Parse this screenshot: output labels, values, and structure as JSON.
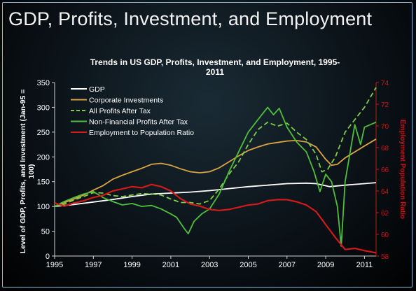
{
  "slide_title": "GDP, Profits, Investment, and Employment",
  "chart_data": {
    "type": "line",
    "title_line1": "Trends in US GDP, Profits, Investment, and Employment, 1995-",
    "title_line2": "2011",
    "ylabel_line1": "Level of GDP, Profits, and Investment (Jan-95 =",
    "ylabel_line2": "100)",
    "y2label": "Employment Population Ratio",
    "xlim": [
      1995,
      2011.6
    ],
    "ylim": [
      0,
      350
    ],
    "y2lim": [
      58,
      74
    ],
    "x_ticks": [
      "1995",
      "1997",
      "1999",
      "2001",
      "2003",
      "2005",
      "2007",
      "2009",
      "2011"
    ],
    "y_ticks": [
      "0",
      "50",
      "100",
      "150",
      "200",
      "250",
      "300",
      "350"
    ],
    "y2_ticks": [
      "58",
      "60",
      "62",
      "64",
      "66",
      "68",
      "70",
      "72",
      "74"
    ],
    "legend_position": "top-left",
    "series": [
      {
        "name": "GDP",
        "color": "#ffffff",
        "dash": "solid",
        "axis": "left",
        "points": [
          [
            1995,
            100
          ],
          [
            1996,
            104
          ],
          [
            1997,
            109
          ],
          [
            1998,
            114
          ],
          [
            1999,
            120
          ],
          [
            2000,
            125
          ],
          [
            2001,
            127
          ],
          [
            2002,
            129
          ],
          [
            2003,
            132
          ],
          [
            2004,
            136
          ],
          [
            2005,
            140
          ],
          [
            2006,
            143
          ],
          [
            2007,
            146
          ],
          [
            2008,
            147
          ],
          [
            2008.5,
            146
          ],
          [
            2009.2,
            140
          ],
          [
            2010,
            143
          ],
          [
            2011,
            146
          ],
          [
            2011.6,
            148
          ]
        ]
      },
      {
        "name": "Corporate Investments",
        "color": "#d9a441",
        "dash": "solid",
        "axis": "left",
        "points": [
          [
            1995,
            100
          ],
          [
            1995.5,
            108
          ],
          [
            1996,
            115
          ],
          [
            1996.5,
            123
          ],
          [
            1997,
            133
          ],
          [
            1997.5,
            142
          ],
          [
            1998,
            155
          ],
          [
            1998.5,
            163
          ],
          [
            1999,
            170
          ],
          [
            1999.5,
            177
          ],
          [
            2000,
            185
          ],
          [
            2000.5,
            187
          ],
          [
            2001,
            183
          ],
          [
            2001.5,
            176
          ],
          [
            2002,
            170
          ],
          [
            2002.5,
            168
          ],
          [
            2003,
            170
          ],
          [
            2003.5,
            178
          ],
          [
            2004,
            190
          ],
          [
            2004.5,
            202
          ],
          [
            2005,
            213
          ],
          [
            2005.5,
            220
          ],
          [
            2006,
            226
          ],
          [
            2006.5,
            229
          ],
          [
            2007,
            232
          ],
          [
            2007.5,
            233
          ],
          [
            2008,
            230
          ],
          [
            2008.5,
            220
          ],
          [
            2009,
            195
          ],
          [
            2009.3,
            183
          ],
          [
            2009.6,
            185
          ],
          [
            2010,
            198
          ],
          [
            2010.5,
            210
          ],
          [
            2011,
            222
          ],
          [
            2011.6,
            236
          ]
        ]
      },
      {
        "name": "All Profits After Tax",
        "color": "#7dcc4a",
        "dash": "dashed",
        "axis": "left",
        "points": [
          [
            1995,
            100
          ],
          [
            1995.5,
            105
          ],
          [
            1996,
            113
          ],
          [
            1996.5,
            120
          ],
          [
            1997,
            128
          ],
          [
            1997.5,
            127
          ],
          [
            1998,
            122
          ],
          [
            1998.5,
            120
          ],
          [
            1999,
            123
          ],
          [
            1999.5,
            126
          ],
          [
            2000,
            125
          ],
          [
            2000.5,
            123
          ],
          [
            2001,
            115
          ],
          [
            2001.5,
            108
          ],
          [
            2002,
            108
          ],
          [
            2002.5,
            105
          ],
          [
            2003,
            112
          ],
          [
            2003.5,
            135
          ],
          [
            2004,
            165
          ],
          [
            2004.5,
            190
          ],
          [
            2005,
            225
          ],
          [
            2005.5,
            255
          ],
          [
            2006,
            270
          ],
          [
            2006.5,
            262
          ],
          [
            2007,
            268
          ],
          [
            2007.5,
            250
          ],
          [
            2008,
            235
          ],
          [
            2008.5,
            205
          ],
          [
            2008.8,
            170
          ],
          [
            2009.1,
            175
          ],
          [
            2009.5,
            200
          ],
          [
            2010,
            250
          ],
          [
            2010.5,
            275
          ],
          [
            2011,
            300
          ],
          [
            2011.6,
            340
          ]
        ]
      },
      {
        "name": "Non-Financial Profits After Tax",
        "color": "#4fbf3a",
        "dash": "solid",
        "axis": "left",
        "points": [
          [
            1995,
            100
          ],
          [
            1995.5,
            110
          ],
          [
            1996,
            118
          ],
          [
            1996.5,
            125
          ],
          [
            1997,
            130
          ],
          [
            1997.5,
            118
          ],
          [
            1998,
            110
          ],
          [
            1998.5,
            103
          ],
          [
            1999,
            106
          ],
          [
            1999.5,
            100
          ],
          [
            2000,
            102
          ],
          [
            2000.5,
            95
          ],
          [
            2001,
            85
          ],
          [
            2001.3,
            78
          ],
          [
            2001.7,
            55
          ],
          [
            2001.9,
            45
          ],
          [
            2002.2,
            70
          ],
          [
            2002.6,
            85
          ],
          [
            2003,
            95
          ],
          [
            2003.5,
            125
          ],
          [
            2004,
            170
          ],
          [
            2004.5,
            210
          ],
          [
            2005,
            250
          ],
          [
            2005.5,
            275
          ],
          [
            2006,
            300
          ],
          [
            2006.3,
            285
          ],
          [
            2006.6,
            298
          ],
          [
            2007,
            260
          ],
          [
            2007.5,
            230
          ],
          [
            2008,
            210
          ],
          [
            2008.4,
            170
          ],
          [
            2008.7,
            130
          ],
          [
            2009.0,
            165
          ],
          [
            2009.3,
            150
          ],
          [
            2009.6,
            100
          ],
          [
            2009.8,
            20
          ],
          [
            2010,
            150
          ],
          [
            2010.5,
            265
          ],
          [
            2010.8,
            225
          ],
          [
            2011,
            260
          ],
          [
            2011.6,
            270
          ]
        ]
      },
      {
        "name": "Employment to Population Ratio",
        "color": "#d11a1a",
        "dash": "solid",
        "axis": "right",
        "points": [
          [
            1995,
            62.9
          ],
          [
            1995.5,
            62.6
          ],
          [
            1996,
            62.9
          ],
          [
            1996.5,
            63.1
          ],
          [
            1997,
            63.4
          ],
          [
            1997.5,
            63.6
          ],
          [
            1998,
            64.0
          ],
          [
            1998.5,
            64.2
          ],
          [
            1999,
            64.4
          ],
          [
            1999.5,
            64.3
          ],
          [
            2000,
            64.6
          ],
          [
            2000.5,
            64.4
          ],
          [
            2001,
            64.0
          ],
          [
            2001.5,
            63.3
          ],
          [
            2002,
            62.8
          ],
          [
            2002.5,
            62.6
          ],
          [
            2003,
            62.3
          ],
          [
            2003.5,
            62.2
          ],
          [
            2004,
            62.3
          ],
          [
            2004.5,
            62.5
          ],
          [
            2005,
            62.7
          ],
          [
            2005.5,
            62.8
          ],
          [
            2006,
            63.1
          ],
          [
            2006.5,
            63.2
          ],
          [
            2007,
            63.2
          ],
          [
            2007.5,
            63.0
          ],
          [
            2008,
            62.7
          ],
          [
            2008.5,
            62.1
          ],
          [
            2009,
            60.9
          ],
          [
            2009.5,
            59.7
          ],
          [
            2010,
            58.6
          ],
          [
            2010.5,
            58.7
          ],
          [
            2011,
            58.5
          ],
          [
            2011.6,
            58.3
          ]
        ]
      }
    ]
  }
}
